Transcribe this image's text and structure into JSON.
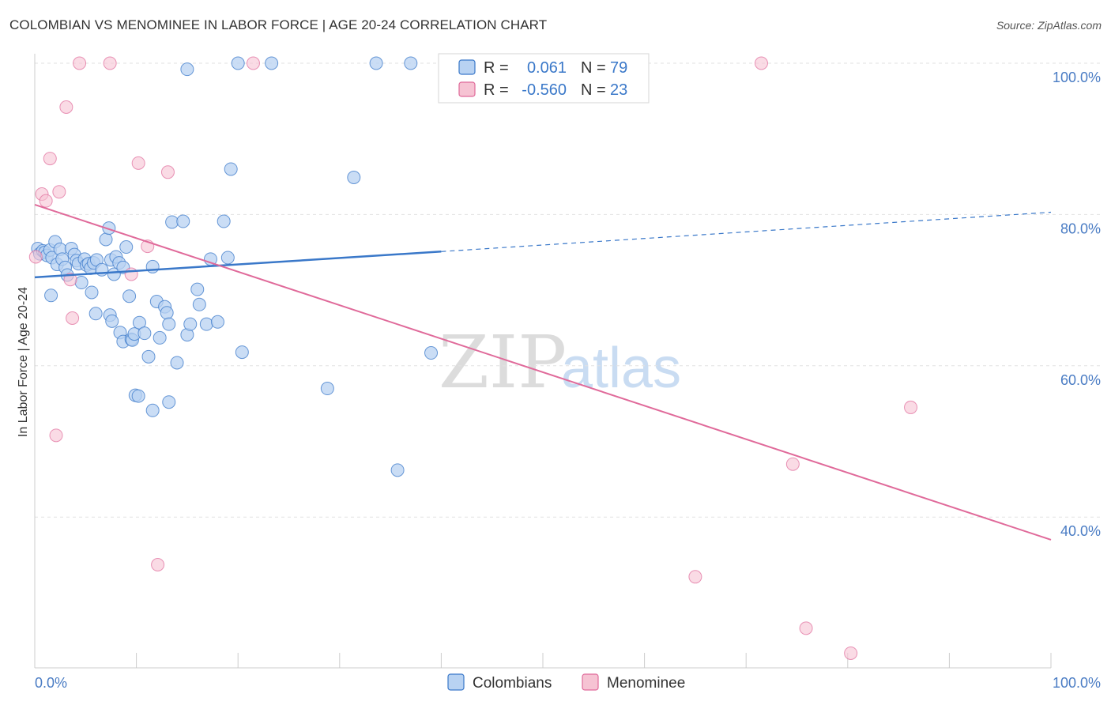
{
  "title": "COLOMBIAN VS MENOMINEE IN LABOR FORCE | AGE 20-24 CORRELATION CHART",
  "source": "Source: ZipAtlas.com",
  "watermark": {
    "zip": "ZIP",
    "atlas": "atlas"
  },
  "colors": {
    "blue": "#3a78c9",
    "blue_fill": "#b8d2f2",
    "pink": "#e06a9a",
    "pink_fill": "#f6c3d3",
    "tick_text": "#4a7cc4",
    "grid": "#e2e2e2"
  },
  "legend": {
    "rows": [
      {
        "r_label": "R =",
        "r_value": "0.061",
        "n_label": "N =",
        "n_value": "79"
      },
      {
        "r_label": "R =",
        "r_value": "-0.560",
        "n_label": "N =",
        "n_value": "23"
      }
    ]
  },
  "bottom_legend": {
    "series1": "Colombians",
    "series2": "Menominee"
  },
  "chart_data": {
    "type": "scatter",
    "title": "COLOMBIAN VS MENOMINEE IN LABOR FORCE | AGE 20-24 CORRELATION CHART",
    "xlabel": "",
    "ylabel": "In Labor Force | Age 20-24",
    "xlim": [
      0,
      100
    ],
    "ylim": [
      20,
      102
    ],
    "x_tick_labels": [
      "0.0%",
      "100.0%"
    ],
    "y_ticks": [
      40,
      60,
      80,
      100
    ],
    "y_tick_labels": [
      "40.0%",
      "60.0%",
      "80.0%",
      "100.0%"
    ],
    "grid": true,
    "legend_position": "top-center",
    "series": [
      {
        "name": "Colombians",
        "color": "#3a78c9",
        "r": 0.061,
        "n": 79,
        "trend": {
          "x": [
            0,
            40,
            100
          ],
          "y": [
            71.7,
            75.1,
            80.3
          ],
          "solid_until": 40
        },
        "points": [
          [
            0.3,
            75.5
          ],
          [
            0.5,
            74.8
          ],
          [
            0.8,
            75.2
          ],
          [
            1.0,
            75.0
          ],
          [
            1.2,
            74.6
          ],
          [
            1.5,
            75.3
          ],
          [
            1.7,
            74.3
          ],
          [
            2.0,
            76.4
          ],
          [
            2.2,
            73.4
          ],
          [
            2.5,
            75.4
          ],
          [
            2.7,
            74.1
          ],
          [
            3.0,
            73.0
          ],
          [
            3.2,
            72.0
          ],
          [
            3.6,
            75.5
          ],
          [
            3.9,
            74.7
          ],
          [
            4.1,
            73.9
          ],
          [
            4.3,
            73.5
          ],
          [
            4.6,
            71.0
          ],
          [
            4.9,
            74.1
          ],
          [
            5.1,
            73.3
          ],
          [
            5.3,
            73.5
          ],
          [
            5.5,
            72.9
          ],
          [
            5.8,
            73.6
          ],
          [
            6.1,
            74.0
          ],
          [
            6.6,
            72.7
          ],
          [
            7.0,
            76.7
          ],
          [
            7.3,
            78.2
          ],
          [
            7.5,
            74.0
          ],
          [
            7.8,
            72.1
          ],
          [
            8.0,
            74.4
          ],
          [
            8.3,
            73.6
          ],
          [
            8.7,
            73.0
          ],
          [
            9.0,
            75.7
          ],
          [
            1.6,
            69.3
          ],
          [
            5.6,
            69.7
          ],
          [
            6.0,
            66.9
          ],
          [
            7.4,
            66.7
          ],
          [
            7.6,
            65.9
          ],
          [
            8.4,
            64.4
          ],
          [
            8.7,
            63.2
          ],
          [
            9.3,
            69.2
          ],
          [
            9.5,
            63.5
          ],
          [
            9.6,
            63.4
          ],
          [
            9.8,
            64.2
          ],
          [
            10.3,
            65.7
          ],
          [
            10.8,
            64.3
          ],
          [
            11.2,
            61.2
          ],
          [
            11.6,
            73.1
          ],
          [
            12.0,
            68.5
          ],
          [
            12.3,
            63.7
          ],
          [
            12.8,
            67.8
          ],
          [
            13.0,
            67.0
          ],
          [
            13.2,
            65.5
          ],
          [
            13.5,
            79.0
          ],
          [
            14.0,
            60.4
          ],
          [
            14.6,
            79.1
          ],
          [
            15.0,
            64.1
          ],
          [
            15.3,
            65.5
          ],
          [
            16.0,
            70.1
          ],
          [
            16.2,
            68.1
          ],
          [
            16.9,
            65.5
          ],
          [
            17.3,
            74.1
          ],
          [
            18.0,
            65.8
          ],
          [
            18.6,
            79.1
          ],
          [
            19.0,
            74.3
          ],
          [
            19.3,
            86.0
          ],
          [
            9.9,
            56.1
          ],
          [
            10.2,
            56.0
          ],
          [
            11.6,
            54.1
          ],
          [
            13.2,
            55.2
          ],
          [
            20.4,
            61.8
          ],
          [
            28.8,
            57.0
          ],
          [
            31.4,
            84.9
          ],
          [
            35.7,
            46.2
          ],
          [
            39.0,
            61.7
          ],
          [
            15.0,
            99.2
          ],
          [
            20.0,
            100.0
          ],
          [
            23.3,
            100.0
          ],
          [
            33.6,
            100.0
          ],
          [
            37.0,
            100.0
          ]
        ]
      },
      {
        "name": "Menominee",
        "color": "#e06a9a",
        "r": -0.56,
        "n": 23,
        "trend": {
          "x": [
            0,
            100
          ],
          "y": [
            81.3,
            37.0
          ]
        },
        "points": [
          [
            0.1,
            74.4
          ],
          [
            0.7,
            82.7
          ],
          [
            1.1,
            81.8
          ],
          [
            1.5,
            87.4
          ],
          [
            2.1,
            50.8
          ],
          [
            2.4,
            83.0
          ],
          [
            3.1,
            94.2
          ],
          [
            3.5,
            71.4
          ],
          [
            3.7,
            66.3
          ],
          [
            4.4,
            100.0
          ],
          [
            7.4,
            100.0
          ],
          [
            9.5,
            72.1
          ],
          [
            10.2,
            86.8
          ],
          [
            11.1,
            75.8
          ],
          [
            12.1,
            33.7
          ],
          [
            13.1,
            85.6
          ],
          [
            21.5,
            100.0
          ],
          [
            71.5,
            100.0
          ],
          [
            65.0,
            32.1
          ],
          [
            74.6,
            47.0
          ],
          [
            75.9,
            25.3
          ],
          [
            80.3,
            22.0
          ],
          [
            86.2,
            54.5
          ]
        ]
      }
    ]
  }
}
